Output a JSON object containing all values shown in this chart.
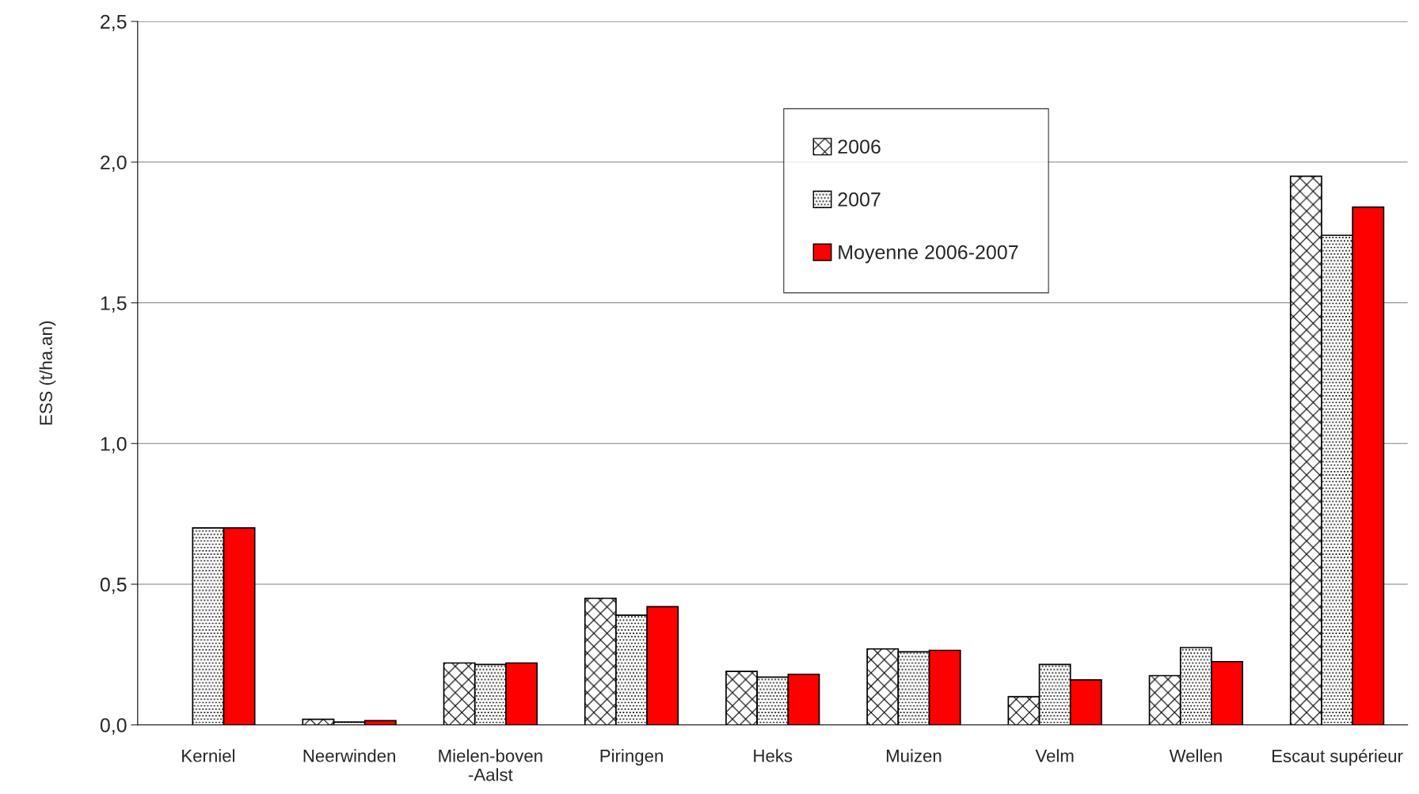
{
  "chart_data": {
    "type": "bar",
    "ylabel": "ESS (t/ha.an)",
    "categories": [
      "Kerniel",
      "Neerwinden",
      "Mielen-boven\n-Aalst",
      "Piringen",
      "Heks",
      "Muizen",
      "Velm",
      "Wellen",
      "Escaut supérieur"
    ],
    "series": [
      {
        "name": "2006",
        "color": "#000000",
        "values": [
          null,
          0.02,
          0.22,
          0.45,
          0.19,
          0.27,
          0.1,
          0.175,
          1.95
        ]
      },
      {
        "name": "2007",
        "color": "#000000",
        "values": [
          0.7,
          0.01,
          0.215,
          0.39,
          0.17,
          0.26,
          0.215,
          0.275,
          1.74
        ]
      },
      {
        "name": "Moyenne 2006-2007",
        "color": "#ff0000",
        "values": [
          0.7,
          0.015,
          0.22,
          0.42,
          0.18,
          0.265,
          0.16,
          0.225,
          1.84
        ]
      }
    ],
    "ylim": [
      0,
      2.5
    ],
    "yticks": [
      {
        "value": 0,
        "label": "0,0"
      },
      {
        "value": 0.5,
        "label": "0,5"
      },
      {
        "value": 1,
        "label": "1,0"
      },
      {
        "value": 1.5,
        "label": "1,5"
      },
      {
        "value": 2,
        "label": "2,0"
      },
      {
        "value": 2.5,
        "label": "2,5"
      }
    ],
    "grid": "y",
    "legend": "top"
  }
}
